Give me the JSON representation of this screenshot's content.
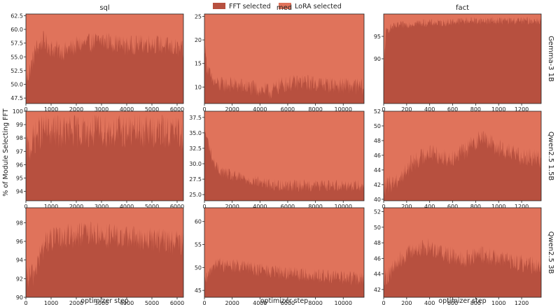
{
  "colors": {
    "fft": "#b7503f",
    "lora": "#e0735b"
  },
  "legend": [
    {
      "label": "FFT selected",
      "color": "#b7503f"
    },
    {
      "label": "LoRA selected",
      "color": "#e0735b"
    }
  ],
  "y_axis_label": "% of Module Selecting FFT",
  "x_axis_label": "optimizer step",
  "columns": [
    "sql",
    "med",
    "fact"
  ],
  "rows": [
    "Gemma-3 1B",
    "Qwen2.5 1.5B",
    "Qwen2.5 3B"
  ],
  "chart_data": [
    {
      "type": "area",
      "row": "Gemma-3 1B",
      "column": "sql",
      "xlim": [
        0,
        6250
      ],
      "ylim": [
        46.5,
        62.8
      ],
      "xticks": [
        0,
        1000,
        2000,
        3000,
        4000,
        5000,
        6000
      ],
      "yticks": [
        47.5,
        50.0,
        52.5,
        55.0,
        57.5,
        60.0,
        62.5
      ],
      "ytick_format": 1,
      "profile": {
        "x": [
          0,
          150,
          400,
          700,
          1000,
          1500,
          2000,
          3000,
          4000,
          5000,
          6000,
          6250
        ],
        "y": [
          50.5,
          52.5,
          56.5,
          58.0,
          56.5,
          56.0,
          57.0,
          58.0,
          57.0,
          57.5,
          56.5,
          56.0
        ]
      },
      "noise": 1.8
    },
    {
      "type": "area",
      "row": "Gemma-3 1B",
      "column": "med",
      "xlim": [
        0,
        11500
      ],
      "ylim": [
        6.5,
        25.5
      ],
      "xticks": [
        0,
        2000,
        4000,
        6000,
        8000,
        10000
      ],
      "yticks": [
        10,
        15,
        20,
        25
      ],
      "ytick_format": 0,
      "profile": {
        "x": [
          0,
          150,
          500,
          1000,
          2000,
          3000,
          4000,
          4800,
          5500,
          7000,
          9000,
          11500
        ],
        "y": [
          20.0,
          15.0,
          11.5,
          10.5,
          10.5,
          10.0,
          9.5,
          9.0,
          10.5,
          11.0,
          10.5,
          10.0
        ]
      },
      "noise": 1.8
    },
    {
      "type": "area",
      "row": "Gemma-3 1B",
      "column": "fact",
      "xlim": [
        0,
        1370
      ],
      "ylim": [
        80.0,
        100.0
      ],
      "xticks": [
        0,
        200,
        400,
        600,
        800,
        1000,
        1200
      ],
      "yticks": [
        90,
        95
      ],
      "ytick_format": 0,
      "profile": {
        "x": [
          0,
          5,
          20,
          60,
          150,
          300,
          500,
          700,
          900,
          1100,
          1370
        ],
        "y": [
          82.0,
          90.0,
          96.0,
          97.0,
          97.5,
          98.0,
          98.0,
          98.5,
          98.5,
          98.5,
          98.5
        ]
      },
      "noise": 0.9
    },
    {
      "type": "area",
      "row": "Qwen2.5 1.5B",
      "column": "sql",
      "xlim": [
        0,
        6250
      ],
      "ylim": [
        93.3,
        100.0
      ],
      "xticks": [
        0,
        1000,
        2000,
        3000,
        4000,
        5000,
        6000
      ],
      "yticks": [
        94,
        95,
        96,
        97,
        98,
        99,
        100
      ],
      "ytick_format": 0,
      "profile": {
        "x": [
          0,
          150,
          400,
          700,
          1000,
          2000,
          3000,
          4000,
          5000,
          6000,
          6250
        ],
        "y": [
          97.0,
          97.3,
          98.2,
          98.6,
          98.5,
          98.5,
          98.5,
          98.5,
          98.5,
          98.4,
          98.2
        ]
      },
      "noise": 1.3
    },
    {
      "type": "area",
      "row": "Qwen2.5 1.5B",
      "column": "med",
      "xlim": [
        0,
        11500
      ],
      "ylim": [
        24.0,
        38.5
      ],
      "xticks": [
        0,
        2000,
        4000,
        6000,
        8000,
        10000
      ],
      "yticks": [
        25.0,
        27.5,
        30.0,
        32.5,
        35.0,
        37.5
      ],
      "ytick_format": 1,
      "profile": {
        "x": [
          0,
          200,
          600,
          1000,
          2000,
          3000,
          4000,
          5000,
          7000,
          9000,
          11500
        ],
        "y": [
          35.5,
          34.0,
          30.5,
          29.0,
          28.0,
          27.5,
          27.0,
          26.5,
          26.5,
          26.5,
          26.5
        ]
      },
      "noise": 1.0
    },
    {
      "type": "area",
      "row": "Qwen2.5 1.5B",
      "column": "fact",
      "xlim": [
        0,
        1370
      ],
      "ylim": [
        39.8,
        52.0
      ],
      "xticks": [
        0,
        200,
        400,
        600,
        800,
        1000,
        1200
      ],
      "yticks": [
        40,
        42,
        44,
        46,
        48,
        50,
        52
      ],
      "ytick_format": 0,
      "profile": {
        "x": [
          0,
          50,
          150,
          250,
          400,
          550,
          700,
          850,
          1000,
          1150,
          1370
        ],
        "y": [
          41.5,
          42.0,
          43.0,
          45.0,
          46.5,
          45.5,
          46.5,
          48.5,
          47.0,
          46.0,
          45.5
        ]
      },
      "noise": 1.3
    },
    {
      "type": "area",
      "row": "Qwen2.5 3B",
      "column": "sql",
      "xlim": [
        0,
        6250
      ],
      "ylim": [
        90.0,
        99.6
      ],
      "xticks": [
        0,
        1000,
        2000,
        3000,
        4000,
        5000,
        6000
      ],
      "yticks": [
        90,
        92,
        94,
        96,
        98
      ],
      "ytick_format": 0,
      "profile": {
        "x": [
          0,
          300,
          500,
          800,
          1500,
          2500,
          3500,
          4500,
          5500,
          6250
        ],
        "y": [
          92.0,
          92.5,
          94.0,
          96.0,
          96.5,
          96.8,
          96.5,
          96.3,
          96.0,
          95.8
        ]
      },
      "noise": 1.4
    },
    {
      "type": "area",
      "row": "Qwen2.5 3B",
      "column": "med",
      "xlim": [
        0,
        11500
      ],
      "ylim": [
        43.5,
        63.0
      ],
      "xticks": [
        0,
        2000,
        4000,
        6000,
        8000,
        10000
      ],
      "yticks": [
        45,
        50,
        55,
        60
      ],
      "ytick_format": 0,
      "profile": {
        "x": [
          0,
          200,
          500,
          800,
          1500,
          3000,
          5000,
          7000,
          9000,
          11500
        ],
        "y": [
          47.0,
          47.5,
          50.0,
          51.0,
          50.5,
          50.0,
          49.0,
          48.5,
          48.0,
          47.5
        ]
      },
      "noise": 1.6
    },
    {
      "type": "area",
      "row": "Qwen2.5 3B",
      "column": "fact",
      "xlim": [
        0,
        1370
      ],
      "ylim": [
        41.0,
        52.5
      ],
      "xticks": [
        0,
        200,
        400,
        600,
        800,
        1000,
        1200
      ],
      "yticks": [
        42,
        44,
        46,
        48,
        50,
        52
      ],
      "ytick_format": 0,
      "profile": {
        "x": [
          0,
          50,
          150,
          250,
          400,
          550,
          700,
          850,
          1000,
          1150,
          1370
        ],
        "y": [
          43.5,
          44.0,
          46.0,
          47.0,
          47.5,
          46.5,
          46.0,
          46.5,
          46.0,
          45.5,
          45.0
        ]
      },
      "noise": 1.2
    }
  ]
}
